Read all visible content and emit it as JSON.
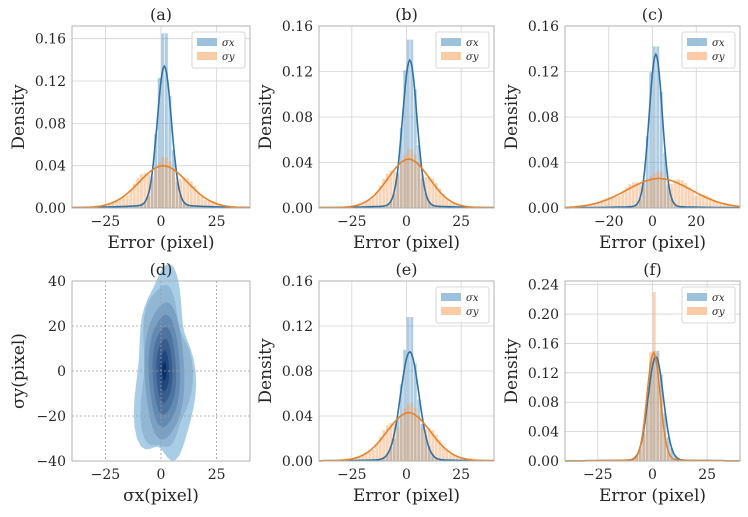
{
  "figure": {
    "grid": true,
    "colors": {
      "sigma_x": "#4c8fbf",
      "sigma_x_line": "#2f72a6",
      "sigma_y": "#f5a05a",
      "sigma_y_line": "#e8822a",
      "kde_base": "#a8cde6",
      "kde_dark": "#08306b"
    }
  },
  "chart_data": [
    {
      "id": "a",
      "type": "hist-kde",
      "title": "(a)",
      "xlabel": "Error (pixel)",
      "ylabel": "Density",
      "xlim": [
        -40,
        40
      ],
      "ylim": [
        0,
        0.172
      ],
      "xticks": [
        -25,
        0,
        25
      ],
      "xtick_labels": [
        "−25",
        "0",
        "25"
      ],
      "yticks": [
        0,
        0.04,
        0.08,
        0.12,
        0.16
      ],
      "ytick_labels": [
        "0.00",
        "0.04",
        "0.08",
        "0.12",
        "0.16"
      ],
      "legend": [
        "σx",
        "σy"
      ],
      "legend_position": "top-right",
      "series": [
        {
          "name": "σx",
          "peak": 0.13,
          "center": 1.5,
          "width": 3.2,
          "tail": 0.004,
          "hist_peak": 0.165
        },
        {
          "name": "σy",
          "peak": 0.038,
          "center": 1.0,
          "width": 11,
          "tail": 0.002,
          "hist_peak": 0.048
        }
      ]
    },
    {
      "id": "b",
      "type": "hist-kde",
      "title": "(b)",
      "xlabel": "Error (pixel)",
      "ylabel": "Density",
      "xlim": [
        -40,
        40
      ],
      "ylim": [
        0,
        0.16
      ],
      "xticks": [
        -25,
        0,
        25
      ],
      "xtick_labels": [
        "−25",
        "0",
        "25"
      ],
      "yticks": [
        0,
        0.04,
        0.08,
        0.12,
        0.16
      ],
      "ytick_labels": [
        "0.00",
        "0.04",
        "0.08",
        "0.12",
        "0.16"
      ],
      "legend": [
        "σx",
        "σy"
      ],
      "legend_position": "top-right",
      "series": [
        {
          "name": "σx",
          "peak": 0.127,
          "center": 1.5,
          "width": 3.3,
          "tail": 0.003,
          "hist_peak": 0.148
        },
        {
          "name": "σy",
          "peak": 0.041,
          "center": 1.0,
          "width": 9.5,
          "tail": 0.002,
          "hist_peak": 0.052
        }
      ]
    },
    {
      "id": "c",
      "type": "hist-kde",
      "title": "(c)",
      "xlabel": "Error (pixel)",
      "ylabel": "Density",
      "xlim": [
        -40,
        40
      ],
      "ylim": [
        0,
        0.16
      ],
      "xticks": [
        -20,
        0,
        20
      ],
      "xtick_labels": [
        "−20",
        "0",
        "20"
      ],
      "yticks": [
        0,
        0.04,
        0.08,
        0.12,
        0.16
      ],
      "ytick_labels": [
        "0.00",
        "0.04",
        "0.08",
        "0.12",
        "0.16"
      ],
      "legend": [
        "σx",
        "σy"
      ],
      "legend_position": "top-right",
      "series": [
        {
          "name": "σx",
          "peak": 0.133,
          "center": 1.5,
          "width": 3.0,
          "tail": 0.002,
          "hist_peak": 0.142
        },
        {
          "name": "σy",
          "peak": 0.025,
          "center": 3.0,
          "width": 15,
          "tail": 0.001,
          "hist_peak": 0.032
        }
      ]
    },
    {
      "id": "d",
      "type": "kde2d",
      "title": "(d)",
      "xlabel": "σx(pixel)",
      "ylabel": "σy(pixel)",
      "xlim": [
        -40,
        40
      ],
      "ylim": [
        -40,
        40
      ],
      "xticks": [
        -25,
        0,
        25
      ],
      "xtick_labels": [
        "−25",
        "0",
        "25"
      ],
      "yticks": [
        -40,
        -20,
        0,
        20,
        40
      ],
      "ytick_labels": [
        "−40",
        "−20",
        "0",
        "20",
        "40"
      ],
      "center": [
        1.5,
        0
      ],
      "spread_x": 5,
      "spread_y": 16,
      "levels": 8
    },
    {
      "id": "e",
      "type": "hist-kde",
      "title": "(e)",
      "xlabel": "Error (pixel)",
      "ylabel": "Density",
      "xlim": [
        -40,
        40
      ],
      "ylim": [
        0,
        0.16
      ],
      "xticks": [
        -25,
        0,
        25
      ],
      "xtick_labels": [
        "−25",
        "0",
        "25"
      ],
      "yticks": [
        0,
        0.04,
        0.08,
        0.12,
        0.16
      ],
      "ytick_labels": [
        "0.00",
        "0.04",
        "0.08",
        "0.12",
        "0.16"
      ],
      "legend": [
        "σx",
        "σy"
      ],
      "legend_position": "top-right",
      "series": [
        {
          "name": "σx",
          "peak": 0.095,
          "center": 1.5,
          "width": 4.2,
          "tail": 0.002,
          "hist_peak": 0.128
        },
        {
          "name": "σy",
          "peak": 0.041,
          "center": 1.0,
          "width": 10,
          "tail": 0.002,
          "hist_peak": 0.05
        }
      ]
    },
    {
      "id": "f",
      "type": "hist-kde",
      "title": "(f)",
      "xlabel": "Error (pixel)",
      "ylabel": "Density",
      "xlim": [
        -40,
        40
      ],
      "ylim": [
        0,
        0.245
      ],
      "xticks": [
        -25,
        0,
        25
      ],
      "xtick_labels": [
        "−25",
        "0",
        "25"
      ],
      "yticks": [
        0,
        0.04,
        0.08,
        0.12,
        0.16,
        0.2,
        0.24
      ],
      "ytick_labels": [
        "0.00",
        "0.04",
        "0.08",
        "0.12",
        "0.16",
        "0.20",
        "0.24"
      ],
      "legend": [
        "σx",
        "σy"
      ],
      "legend_position": "top-right",
      "series": [
        {
          "name": "σx",
          "peak": 0.14,
          "center": 1.5,
          "width": 3.5,
          "tail": 0.002,
          "hist_peak": 0.15
        },
        {
          "name": "σy",
          "peak": 0.145,
          "center": 0.5,
          "width": 3.0,
          "tail": 0.002,
          "hist_peak": 0.23
        }
      ]
    }
  ]
}
